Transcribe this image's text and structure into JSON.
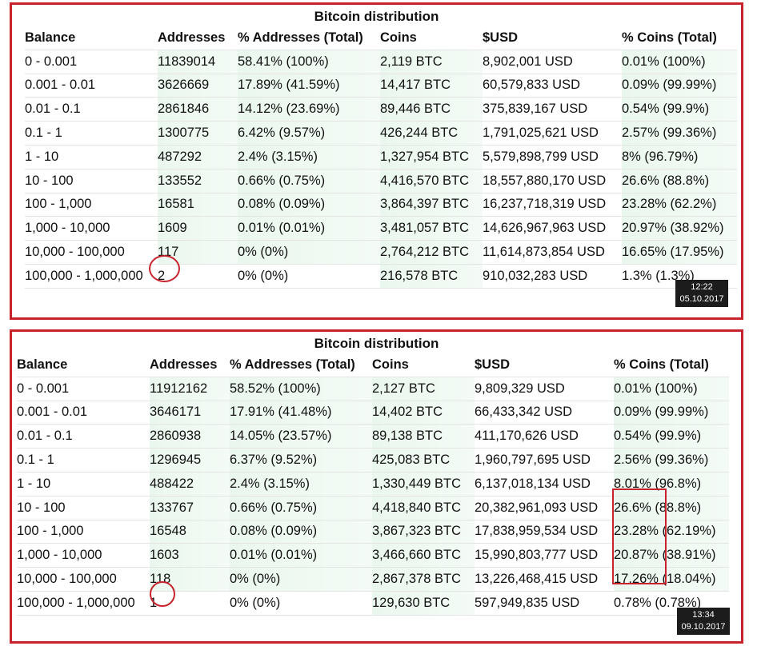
{
  "columns": [
    "Balance",
    "Addresses",
    "% Addresses (Total)",
    "Coins",
    "$USD",
    "% Coins (Total)"
  ],
  "panels": [
    {
      "title": "Bitcoin distribution",
      "stamp_time": "12:22",
      "stamp_date": "05.10.2017",
      "rows": [
        [
          "0 - 0.001",
          "11839014",
          "58.41% (100%)",
          "2,119 BTC",
          "8,902,001 USD",
          "0.01% (100%)"
        ],
        [
          "0.001 - 0.01",
          "3626669",
          "17.89% (41.59%)",
          "14,417 BTC",
          "60,579,833 USD",
          "0.09% (99.99%)"
        ],
        [
          "0.01 - 0.1",
          "2861846",
          "14.12% (23.69%)",
          "89,446 BTC",
          "375,839,167 USD",
          "0.54% (99.9%)"
        ],
        [
          "0.1 - 1",
          "1300775",
          "6.42% (9.57%)",
          "426,244 BTC",
          "1,791,025,621 USD",
          "2.57% (99.36%)"
        ],
        [
          "1 - 10",
          "487292",
          "2.4% (3.15%)",
          "1,327,954 BTC",
          "5,579,898,799 USD",
          "8% (96.79%)"
        ],
        [
          "10 - 100",
          "133552",
          "0.66% (0.75%)",
          "4,416,570 BTC",
          "18,557,880,170 USD",
          "26.6% (88.8%)"
        ],
        [
          "100 - 1,000",
          "16581",
          "0.08% (0.09%)",
          "3,864,397 BTC",
          "16,237,718,319 USD",
          "23.28% (62.2%)"
        ],
        [
          "1,000 - 10,000",
          "1609",
          "0.01% (0.01%)",
          "3,481,057 BTC",
          "14,626,967,963 USD",
          "20.97% (38.92%)"
        ],
        [
          "10,000 - 100,000",
          "117",
          "0% (0%)",
          "2,764,212 BTC",
          "11,614,873,854 USD",
          "16.65% (17.95%)"
        ],
        [
          "100,000 - 1,000,000",
          "2",
          "0% (0%)",
          "216,578 BTC",
          "910,032,283 USD",
          "1.3% (1.3%)"
        ]
      ]
    },
    {
      "title": "Bitcoin distribution",
      "stamp_time": "13:34",
      "stamp_date": "09.10.2017",
      "rows": [
        [
          "0 - 0.001",
          "11912162",
          "58.52% (100%)",
          "2,127 BTC",
          "9,809,329 USD",
          "0.01% (100%)"
        ],
        [
          "0.001 - 0.01",
          "3646171",
          "17.91% (41.48%)",
          "14,402 BTC",
          "66,433,342 USD",
          "0.09% (99.99%)"
        ],
        [
          "0.01 - 0.1",
          "2860938",
          "14.05% (23.57%)",
          "89,138 BTC",
          "411,170,626 USD",
          "0.54% (99.9%)"
        ],
        [
          "0.1 - 1",
          "1296945",
          "6.37% (9.52%)",
          "425,083 BTC",
          "1,960,797,695 USD",
          "2.56% (99.36%)"
        ],
        [
          "1 - 10",
          "488422",
          "2.4% (3.15%)",
          "1,330,449 BTC",
          "6,137,018,134 USD",
          "8.01% (96.8%)"
        ],
        [
          "10 - 100",
          "133767",
          "0.66% (0.75%)",
          "4,418,840 BTC",
          "20,382,961,093 USD",
          "26.6% (88.8%)"
        ],
        [
          "100 - 1,000",
          "16548",
          "0.08% (0.09%)",
          "3,867,323 BTC",
          "17,838,959,534 USD",
          "23.28% (62.19%)"
        ],
        [
          "1,000 - 10,000",
          "1603",
          "0.01% (0.01%)",
          "3,466,660 BTC",
          "15,990,803,777 USD",
          "20.87% (38.91%)"
        ],
        [
          "10,000 - 100,000",
          "118",
          "0% (0%)",
          "2,867,378 BTC",
          "13,226,468,415 USD",
          "17.26% (18.04%)"
        ],
        [
          "100,000 - 1,000,000",
          "1",
          "0% (0%)",
          "129,630 BTC",
          "597,949,835 USD",
          "0.78% (0.78%)"
        ]
      ]
    }
  ],
  "colors": {
    "frame": "#c8232c",
    "shade": "#eaf7ee",
    "stamp_bg": "#1c1c1c"
  }
}
